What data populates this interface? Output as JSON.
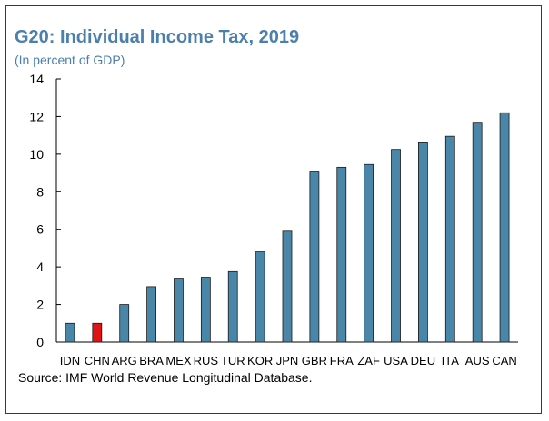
{
  "header": {
    "title": "G20: Individual Income Tax, 2019",
    "subtitle": "(In percent of GDP)"
  },
  "footer": {
    "source": "Source: IMF World Revenue Longitudinal Database."
  },
  "colors": {
    "bar": "#4a86a8",
    "highlight": "#e01414",
    "title": "#4a7fae"
  },
  "chart_data": {
    "type": "bar",
    "title": "G20: Individual Income Tax, 2019",
    "subtitle": "(In percent of GDP)",
    "categories": [
      "IDN",
      "CHN",
      "ARG",
      "BRA",
      "MEX",
      "RUS",
      "TUR",
      "KOR",
      "JPN",
      "GBR",
      "FRA",
      "ZAF",
      "USA",
      "DEU",
      "ITA",
      "AUS",
      "CAN"
    ],
    "values": [
      1.0,
      1.0,
      2.0,
      2.95,
      3.4,
      3.45,
      3.75,
      4.8,
      5.9,
      9.05,
      9.3,
      9.45,
      10.25,
      10.6,
      10.95,
      11.65,
      12.2
    ],
    "highlight": [
      "CHN"
    ],
    "xlabel": "",
    "ylabel": "",
    "ylim": [
      0,
      14
    ],
    "yticks": [
      0,
      2,
      4,
      6,
      8,
      10,
      12,
      14
    ],
    "grid": false,
    "legend": "none"
  }
}
